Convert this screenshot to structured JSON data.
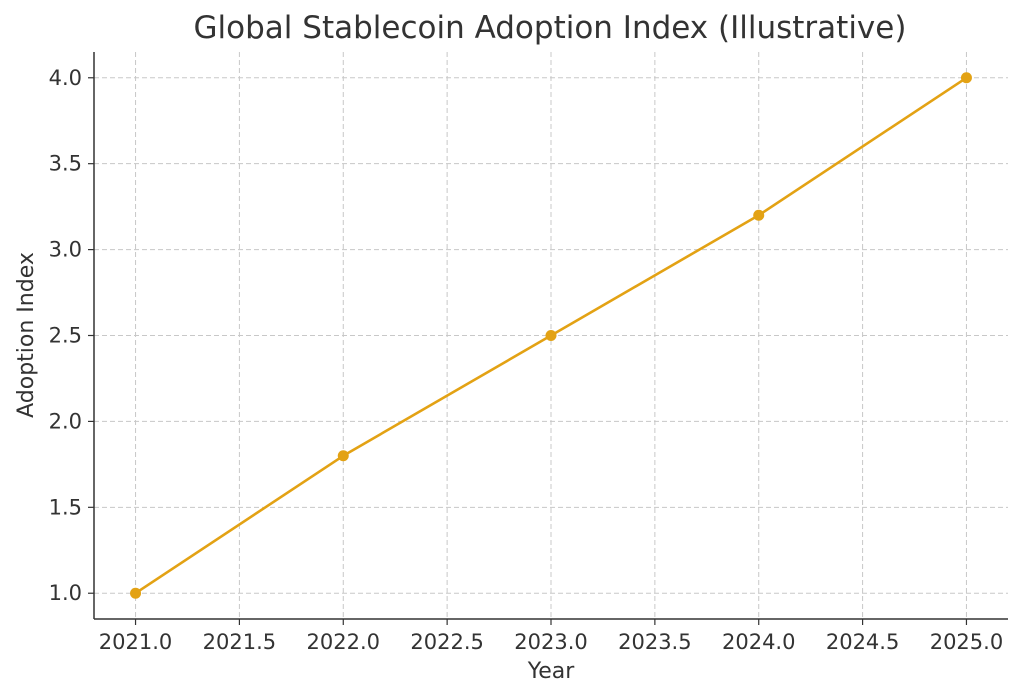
{
  "chart_data": {
    "type": "line",
    "title": "Global Stablecoin Adoption Index (Illustrative)",
    "xlabel": "Year",
    "ylabel": "Adoption Index",
    "xlim": [
      2020.8,
      2025.2
    ],
    "ylim": [
      0.85,
      4.15
    ],
    "x_ticks": [
      2021.0,
      2021.5,
      2022.0,
      2022.5,
      2023.0,
      2023.5,
      2024.0,
      2024.5,
      2025.0
    ],
    "x_tick_labels": [
      "2021.0",
      "2021.5",
      "2022.0",
      "2022.5",
      "2023.0",
      "2023.5",
      "2024.0",
      "2024.5",
      "2025.0"
    ],
    "y_ticks": [
      1.0,
      1.5,
      2.0,
      2.5,
      3.0,
      3.5,
      4.0
    ],
    "y_tick_labels": [
      "1.0",
      "1.5",
      "2.0",
      "2.5",
      "3.0",
      "3.5",
      "4.0"
    ],
    "grid": true,
    "series": [
      {
        "x": [
          2021,
          2022,
          2023,
          2024,
          2025
        ],
        "values": [
          1.0,
          1.8,
          2.5,
          3.2,
          4.0
        ],
        "color": "#E3A214",
        "marker": "circle"
      }
    ]
  }
}
